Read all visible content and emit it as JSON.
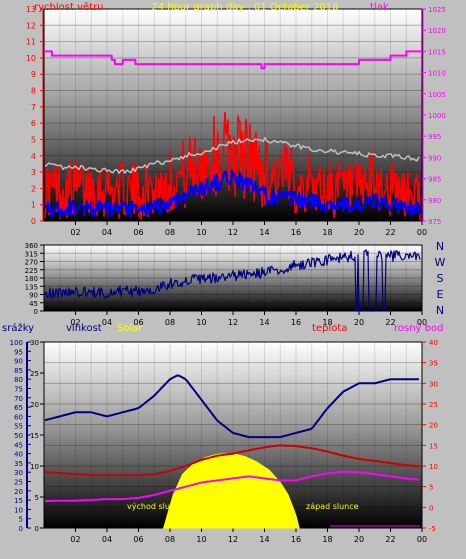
{
  "chart_data": [
    {
      "type": "line",
      "title": "24 hour graph day : 01 October 2018",
      "left_axis_label": "rychlost větru",
      "right_axis_label": "tlak",
      "x_ticks": [
        "02",
        "04",
        "06",
        "08",
        "10",
        "12",
        "14",
        "16",
        "18",
        "20",
        "22",
        "00"
      ],
      "xlim": [
        0,
        24
      ],
      "y_left": {
        "min": 0,
        "max": 13,
        "ticks": [
          "0",
          "1",
          "2",
          "3",
          "4",
          "5",
          "6",
          "7",
          "8",
          "9",
          "10",
          "11",
          "12",
          "13"
        ]
      },
      "y_right": {
        "min": 975,
        "max": 1025,
        "ticks": [
          "975",
          "980",
          "985",
          "990",
          "995",
          "1000",
          "1005",
          "1010",
          "1015",
          "1020",
          "1025"
        ]
      },
      "colors": {
        "gust": "#ff0000",
        "speed": "#0000ff",
        "gray_series": "#c0c0c0",
        "pressure": "#ff00ff"
      },
      "series": [
        {
          "color_key": "pressure",
          "axis": "right",
          "x": [
            0,
            0.5,
            4.3,
            4.5,
            5,
            5.8,
            8,
            9,
            10,
            12,
            13,
            13.8,
            14,
            15,
            16,
            18,
            19,
            20,
            21,
            22,
            23,
            24
          ],
          "y": [
            1015,
            1014,
            1013,
            1012,
            1013,
            1012,
            1012,
            1012,
            1012,
            1012,
            1012,
            1011,
            1012,
            1012,
            1012,
            1012,
            1012,
            1013,
            1013,
            1014,
            1015,
            1015
          ]
        },
        {
          "color_key": "gray_series",
          "axis": "left",
          "x": [
            0,
            1,
            2,
            3,
            4,
            5,
            6,
            7,
            8,
            9,
            10,
            11,
            12,
            13,
            14,
            15,
            16,
            17,
            18,
            19,
            20,
            21,
            22,
            23,
            24
          ],
          "y": [
            3.5,
            3.3,
            3.3,
            3.2,
            3.1,
            3.0,
            3.2,
            3.5,
            3.7,
            4.0,
            4.2,
            4.5,
            4.8,
            5.0,
            5.0,
            4.8,
            4.6,
            4.4,
            4.3,
            4.2,
            4.1,
            4.0,
            4.0,
            3.9,
            3.8
          ]
        },
        {
          "color_key": "gust",
          "axis": "left",
          "noise": 1.8,
          "x": [
            0,
            1,
            2,
            3,
            4,
            5,
            6,
            7,
            8,
            9,
            10,
            11,
            12,
            13,
            14,
            15,
            16,
            17,
            18,
            19,
            20,
            21,
            22,
            23,
            24
          ],
          "y": [
            2.0,
            1.9,
            2.0,
            2.1,
            2.0,
            1.9,
            1.8,
            2.0,
            2.4,
            2.9,
            3.5,
            4.0,
            4.4,
            3.8,
            3.0,
            2.7,
            2.5,
            2.2,
            2.0,
            1.9,
            1.8,
            2.4,
            1.9,
            1.6,
            1.6
          ]
        },
        {
          "color_key": "speed",
          "axis": "left",
          "noise": 0.5,
          "x": [
            0,
            1,
            2,
            3,
            4,
            5,
            6,
            7,
            8,
            9,
            10,
            11,
            12,
            13,
            14,
            15,
            16,
            17,
            18,
            19,
            20,
            21,
            22,
            23,
            24
          ],
          "y": [
            0.7,
            0.7,
            0.8,
            0.8,
            0.7,
            0.7,
            0.6,
            0.8,
            1.1,
            1.6,
            2.0,
            2.4,
            2.7,
            2.2,
            1.6,
            1.4,
            1.3,
            1.2,
            1.0,
            1.0,
            0.9,
            1.2,
            1.0,
            0.8,
            0.6
          ]
        }
      ]
    },
    {
      "type": "scatter",
      "title": "",
      "x_ticks": [
        "02",
        "04",
        "06",
        "08",
        "10",
        "12",
        "14",
        "16",
        "18",
        "20",
        "22",
        "00"
      ],
      "xlim": [
        0,
        24
      ],
      "ylim": [
        0,
        360
      ],
      "y_ticks": [
        "0",
        "45",
        "90",
        "135",
        "180",
        "225",
        "270",
        "315",
        "360"
      ],
      "direction_labels": [
        "N",
        "W",
        "S",
        "E",
        "N"
      ],
      "color": "#000080",
      "series": [
        {
          "name": "",
          "noise": 30,
          "x": [
            0,
            1,
            2,
            3,
            4,
            5,
            6,
            7,
            8,
            9,
            10,
            11,
            12,
            13,
            14,
            15,
            16,
            17,
            18,
            19,
            20,
            21,
            22,
            23,
            24
          ],
          "y": [
            95,
            100,
            105,
            100,
            100,
            110,
            105,
            120,
            150,
            165,
            175,
            180,
            190,
            200,
            210,
            220,
            250,
            265,
            280,
            290,
            305,
            310,
            300,
            295,
            300
          ],
          "drops": [
            [
              19.8,
              20.3
            ],
            [
              20.6,
              21.1
            ],
            [
              21.5,
              21.7
            ]
          ]
        }
      ]
    },
    {
      "type": "line",
      "title": "",
      "labels": {
        "rain": "srážky",
        "humidity": "vlhkost",
        "solar": "Solar",
        "temperature": "teplota",
        "dewpoint": "rosný bod"
      },
      "annotations": {
        "sunrise": "východ slunce",
        "sunset": "západ slunce"
      },
      "x_ticks": [
        "02",
        "04",
        "06",
        "08",
        "10",
        "12",
        "14",
        "16",
        "18",
        "20",
        "22",
        "00"
      ],
      "xlim": [
        0,
        24
      ],
      "y_rain": {
        "min": 0,
        "max": 100,
        "ticks": [
          "0",
          "5",
          "10",
          "15",
          "20",
          "25",
          "30",
          "35",
          "40",
          "45",
          "50",
          "55",
          "60",
          "65",
          "70",
          "75",
          "80",
          "85",
          "90",
          "95",
          "100"
        ]
      },
      "y_humidity": {
        "min": 0,
        "max": 30,
        "ticks": [
          "0",
          "5",
          "10",
          "15",
          "20",
          "25",
          "30"
        ]
      },
      "y_temp": {
        "min": -5,
        "max": 40,
        "ticks": [
          "-5",
          "0",
          "5",
          "10",
          "15",
          "20",
          "25",
          "30",
          "35",
          "40"
        ]
      },
      "colors": {
        "humidity": "#000080",
        "temperature": "#cc0000",
        "dewpoint": "#ff00ff",
        "solar": "#ffff00",
        "rain_axis": "#000080"
      },
      "series": [
        {
          "color_key": "humidity",
          "axis": "temp",
          "x": [
            0,
            1,
            2,
            3,
            4,
            5,
            6,
            7,
            8,
            8.5,
            9,
            10,
            11,
            12,
            13,
            14,
            15,
            16,
            17,
            18,
            19,
            20,
            21,
            22,
            23,
            24
          ],
          "y": [
            21,
            22,
            23,
            23,
            22,
            23,
            24,
            27,
            31,
            32,
            31,
            26,
            21,
            18,
            17,
            17,
            17,
            18,
            19,
            24,
            28,
            30,
            30,
            31,
            31,
            31
          ]
        },
        {
          "color_key": "temperature",
          "axis": "temp",
          "x": [
            0,
            1,
            2,
            3,
            4,
            5,
            6,
            7,
            8,
            9,
            10,
            11,
            12,
            13,
            14,
            15,
            16,
            17,
            18,
            19,
            20,
            21,
            22,
            23,
            24
          ],
          "y": [
            8.5,
            8.3,
            8.0,
            7.8,
            7.8,
            7.8,
            7.8,
            8.0,
            8.8,
            10.0,
            11.5,
            12.5,
            13.0,
            13.8,
            14.5,
            15.0,
            14.8,
            14.3,
            13.5,
            12.5,
            11.7,
            11.2,
            10.7,
            10.2,
            9.8
          ]
        },
        {
          "color_key": "dewpoint",
          "axis": "temp",
          "x": [
            0,
            1,
            2,
            3,
            4,
            5,
            6,
            7,
            8,
            9,
            10,
            11,
            12,
            13,
            14,
            15,
            16,
            17,
            18,
            19,
            20,
            21,
            22,
            23,
            24
          ],
          "y": [
            1.5,
            1.6,
            1.6,
            1.8,
            2.0,
            2.0,
            2.3,
            3.0,
            4.0,
            5.0,
            6.0,
            6.5,
            7.0,
            7.5,
            7.0,
            6.5,
            6.5,
            7.5,
            8.2,
            8.6,
            8.5,
            8.0,
            7.5,
            7.0,
            6.6
          ]
        }
      ],
      "solar": {
        "axis": "temp",
        "x": [
          7.6,
          7.9,
          8.2,
          8.8,
          9.5,
          10.2,
          11.0,
          11.5,
          12.2,
          12.8,
          13.5,
          14.3,
          15.0,
          15.5,
          15.8,
          16.0,
          16.2
        ],
        "y": [
          -5,
          -1,
          3,
          8,
          10.5,
          12,
          12.8,
          13,
          12.8,
          12.2,
          11,
          9,
          6,
          3,
          0,
          -2,
          -5
        ]
      }
    }
  ]
}
